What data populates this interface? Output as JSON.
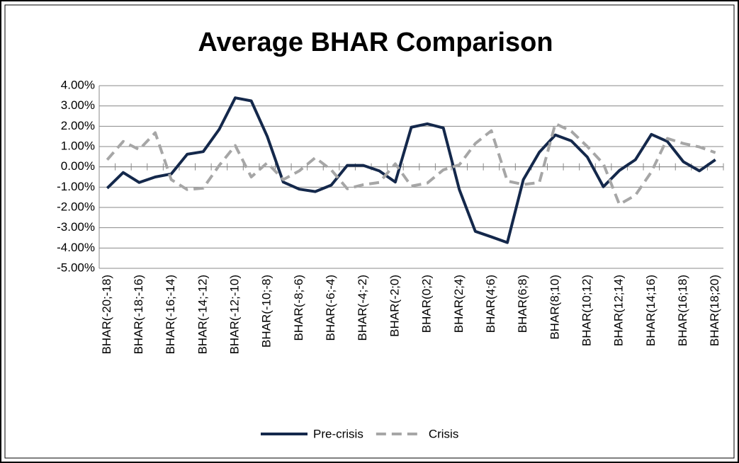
{
  "chart_data": {
    "type": "line",
    "title": "Average BHAR Comparison",
    "categories": [
      "BHAR(-20;-18)",
      null,
      "BHAR(-18;-16)",
      null,
      "BHAR(-16;-14)",
      null,
      "BHAR(-14;-12)",
      null,
      "BHAR(-12;-10)",
      null,
      "BHAR(-10;-8)",
      null,
      "BHAR(-8;-6)",
      null,
      "BHAR(-6;-4)",
      null,
      "BHAR(-4;-2)",
      null,
      "BHAR(-2;0)",
      null,
      "BHAR(0;2)",
      null,
      "BHAR(2;4)",
      null,
      "BHAR(4;6)",
      null,
      "BHAR(6;8)",
      null,
      "BHAR(8;10)",
      null,
      "BHAR(10;12)",
      null,
      "BHAR(12;14)",
      null,
      "BHAR(14;16)",
      null,
      "BHAR(16;18)",
      null,
      "BHAR(18;20)"
    ],
    "series": [
      {
        "name": "Pre-crisis",
        "color": "#14284b",
        "dashed": false,
        "values": [
          -1.05,
          -0.28,
          -0.77,
          -0.5,
          -0.35,
          0.62,
          0.75,
          1.85,
          3.4,
          3.25,
          1.5,
          -0.75,
          -1.1,
          -1.22,
          -0.9,
          0.07,
          0.07,
          -0.2,
          -0.75,
          1.95,
          2.12,
          1.92,
          -1.12,
          -3.18,
          -3.45,
          -3.73,
          -0.63,
          0.72,
          1.57,
          1.28,
          0.48,
          -0.98,
          -0.18,
          0.35,
          1.6,
          1.25,
          0.25,
          -0.2,
          0.35
        ]
      },
      {
        "name": "Crisis",
        "color": "#a6a6a6",
        "dashed": true,
        "values": [
          0.35,
          1.25,
          0.85,
          1.68,
          -0.63,
          -1.12,
          -1.05,
          0.07,
          1.05,
          -0.5,
          0.2,
          -0.63,
          -0.2,
          0.45,
          -0.15,
          -1.08,
          -0.88,
          -0.77,
          0.15,
          -0.95,
          -0.8,
          -0.15,
          0.1,
          1.15,
          1.78,
          -0.7,
          -0.87,
          -0.77,
          2.13,
          1.75,
          1.0,
          0.15,
          -1.85,
          -1.4,
          -0.25,
          1.4,
          1.15,
          0.98,
          0.7
        ]
      }
    ],
    "ylim": [
      -5,
      4
    ],
    "yticks": [
      {
        "value": -5,
        "label": "-5.00%"
      },
      {
        "value": -4,
        "label": "-4.00%"
      },
      {
        "value": -3,
        "label": "-3.00%"
      },
      {
        "value": -2,
        "label": "-2.00%"
      },
      {
        "value": -1,
        "label": "-1.00%"
      },
      {
        "value": 0,
        "label": "0.00%"
      },
      {
        "value": 1,
        "label": "1.00%"
      },
      {
        "value": 2,
        "label": "2.00%"
      },
      {
        "value": 3,
        "label": "3.00%"
      },
      {
        "value": 4,
        "label": "4.00%"
      }
    ],
    "grid": true,
    "legend": "bottom"
  }
}
